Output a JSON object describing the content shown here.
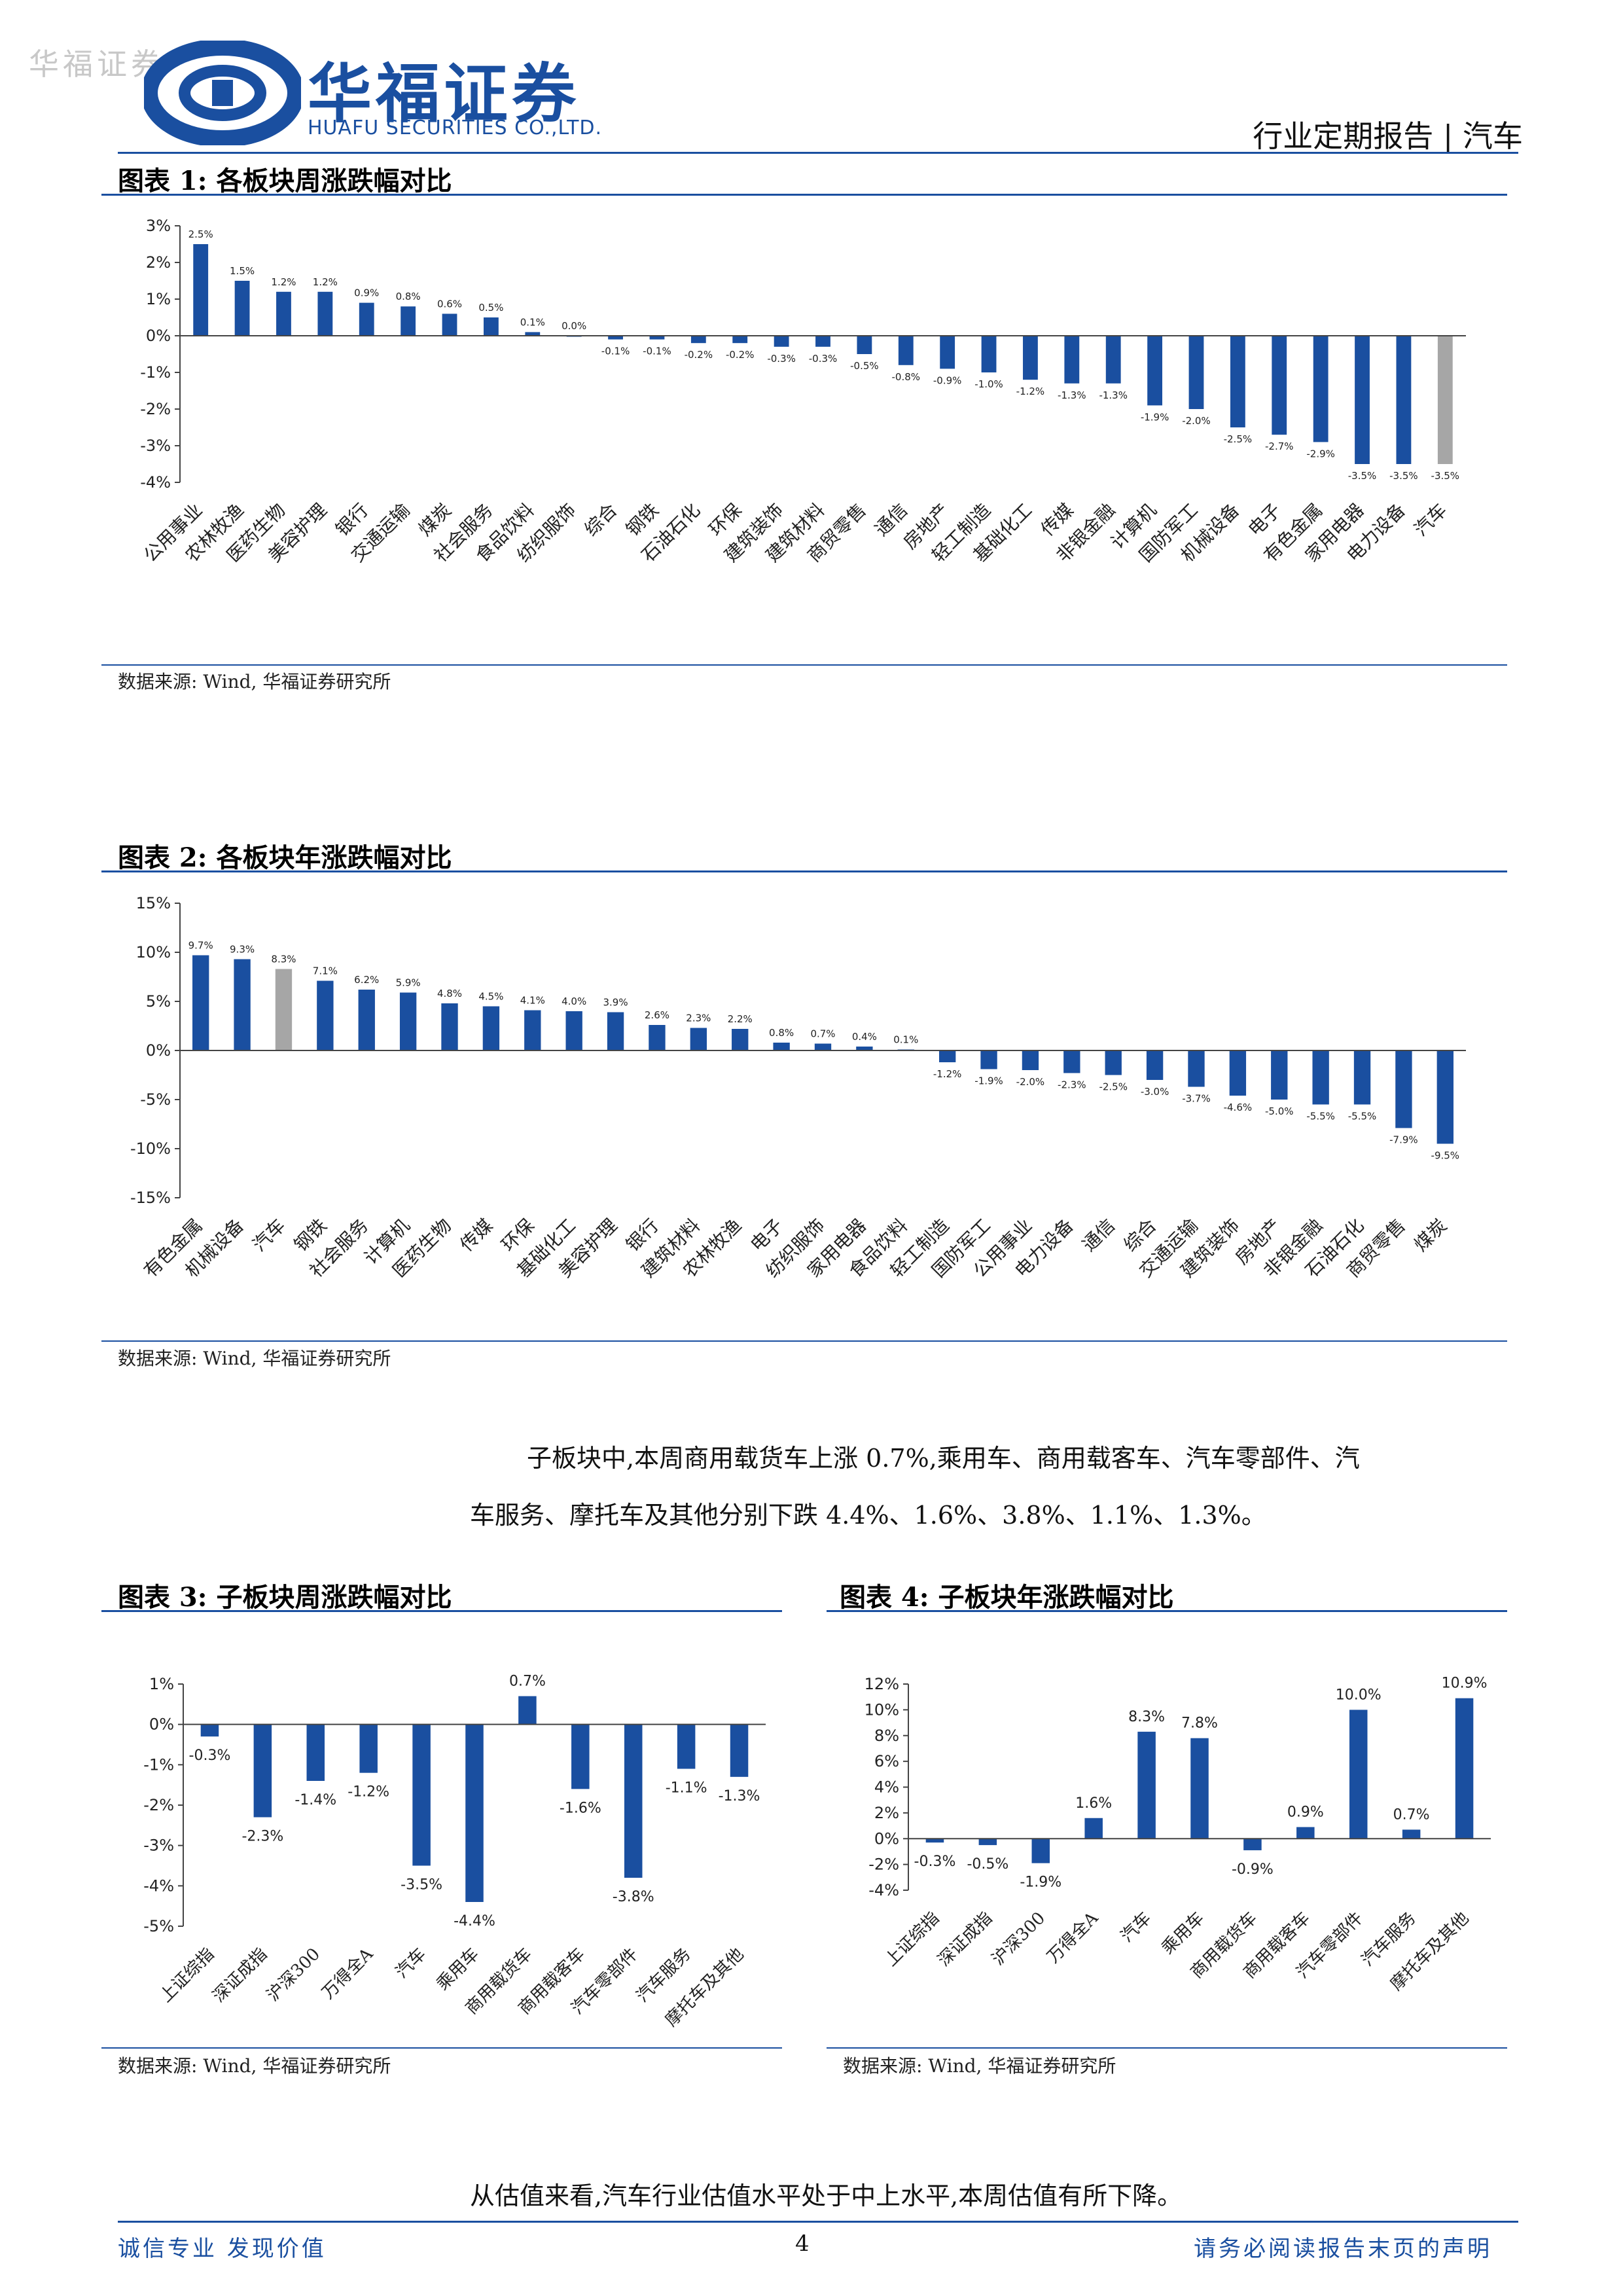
{
  "header": {
    "watermark": "华福证券",
    "logo_cn": "华福证券",
    "logo_en": "HUAFU SECURITIES CO.,LTD.",
    "report_type": "行业定期报告 | 汽车"
  },
  "figures": [
    {
      "title": "图表 1:  各板块周涨跌幅对比",
      "source": "数据来源:  Wind, 华福证券研究所",
      "chart_data": {
        "type": "bar",
        "categories": [
          "公用事业",
          "农林牧渔",
          "医药生物",
          "美容护理",
          "银行",
          "交通运输",
          "煤炭",
          "社会服务",
          "食品饮料",
          "纺织服饰",
          "综合",
          "钢铁",
          "石油石化",
          "环保",
          "建筑装饰",
          "建筑材料",
          "商贸零售",
          "通信",
          "房地产",
          "轻工制造",
          "基础化工",
          "传媒",
          "非银金融",
          "计算机",
          "国防军工",
          "机械设备",
          "电子",
          "有色金属",
          "家用电器",
          "电力设备",
          "汽车"
        ],
        "values": [
          2.5,
          1.5,
          1.2,
          1.2,
          0.9,
          0.8,
          0.6,
          0.5,
          0.1,
          0.0,
          -0.1,
          -0.1,
          -0.2,
          -0.2,
          -0.3,
          -0.3,
          -0.5,
          -0.8,
          -0.9,
          -1.0,
          -1.2,
          -1.3,
          -1.3,
          -1.9,
          -2.0,
          -2.5,
          -2.7,
          -2.9,
          -3.5,
          -3.5,
          -3.5
        ],
        "labels": [
          "2.5%",
          "1.5%",
          "1.2%",
          "1.2%",
          "0.9%",
          "0.8%",
          "0.6%",
          "0.5%",
          "0.1%",
          "0.0%",
          "-0.1%",
          "-0.1%",
          "-0.2%",
          "-0.2%",
          "-0.3%",
          "-0.3%",
          "-0.5%",
          "-0.8%",
          "-0.9%",
          "-1.0%",
          "-1.2%",
          "-1.3%",
          "-1.3%",
          "-1.9%",
          "-2.0%",
          "-2.5%",
          "-2.7%",
          "-2.9%",
          "-3.5%",
          "-3.5%",
          "-3.5%"
        ],
        "highlight": [
          30
        ],
        "ylim": [
          -4,
          3
        ],
        "yticks": [
          3,
          2,
          1,
          0,
          -1,
          -2,
          -3,
          -4
        ],
        "ytick_labels": [
          "3%",
          "2%",
          "1%",
          "0%",
          "-1%",
          "-2%",
          "-3%",
          "-4%"
        ],
        "color": "#1a4fa0",
        "highlight_color": "#a6a6a6"
      }
    },
    {
      "title": "图表 2:  各板块年涨跌幅对比",
      "source": "数据来源:  Wind, 华福证券研究所",
      "chart_data": {
        "type": "bar",
        "categories": [
          "有色金属",
          "机械设备",
          "汽车",
          "钢铁",
          "社会服务",
          "计算机",
          "医药生物",
          "传媒",
          "环保",
          "基础化工",
          "美容护理",
          "银行",
          "建筑材料",
          "农林牧渔",
          "电子",
          "纺织服饰",
          "家用电器",
          "食品饮料",
          "轻工制造",
          "国防军工",
          "公用事业",
          "电力设备",
          "通信",
          "综合",
          "交通运输",
          "建筑装饰",
          "房地产",
          "非银金融",
          "石油石化",
          "商贸零售",
          "煤炭"
        ],
        "values": [
          9.7,
          9.3,
          8.3,
          7.1,
          6.2,
          5.9,
          4.8,
          4.5,
          4.1,
          4.0,
          3.9,
          2.6,
          2.3,
          2.2,
          0.8,
          0.7,
          0.4,
          0.1,
          -1.2,
          -1.9,
          -2.0,
          -2.3,
          -2.5,
          -3.0,
          -3.7,
          -4.6,
          -5.0,
          -5.5,
          -5.5,
          -7.9,
          -9.5
        ],
        "labels": [
          "9.7%",
          "9.3%",
          "8.3%",
          "7.1%",
          "6.2%",
          "5.9%",
          "4.8%",
          "4.5%",
          "4.1%",
          "4.0%",
          "3.9%",
          "2.6%",
          "2.3%",
          "2.2%",
          "0.8%",
          "0.7%",
          "0.4%",
          "0.1%",
          "-1.2%",
          "-1.9%",
          "-2.0%",
          "-2.3%",
          "-2.5%",
          "-3.0%",
          "-3.7%",
          "-4.6%",
          "-5.0%",
          "-5.5%",
          "-5.5%",
          "-7.9%",
          "-9.5%"
        ],
        "highlight": [
          2
        ],
        "ylim": [
          -15,
          15
        ],
        "yticks": [
          15,
          10,
          5,
          0,
          -5,
          -10,
          -15
        ],
        "ytick_labels": [
          "15%",
          "10%",
          "5%",
          "0%",
          "-5%",
          "-10%",
          "-15%"
        ],
        "color": "#1a4fa0",
        "highlight_color": "#a6a6a6"
      }
    },
    {
      "title": "图表 3:  子板块周涨跌幅对比",
      "source": "数据来源:  Wind, 华福证券研究所",
      "chart_data": {
        "type": "bar",
        "categories": [
          "上证综指",
          "深证成指",
          "沪深300",
          "万得全A",
          "汽车",
          "乘用车",
          "商用载货车",
          "商用载客车",
          "汽车零部件",
          "汽车服务",
          "摩托车及其他"
        ],
        "values": [
          -0.3,
          -2.3,
          -1.4,
          -1.2,
          -3.5,
          -4.4,
          0.7,
          -1.6,
          -3.8,
          -1.1,
          -1.3
        ],
        "labels": [
          "-0.3%",
          "-2.3%",
          "-1.4%",
          "-1.2%",
          "-3.5%",
          "-4.4%",
          "0.7%",
          "-1.6%",
          "-3.8%",
          "-1.1%",
          "-1.3%"
        ],
        "highlight": [],
        "ylim": [
          -5,
          1
        ],
        "yticks": [
          1,
          0,
          -1,
          -2,
          -3,
          -4,
          -5
        ],
        "ytick_labels": [
          "1%",
          "0%",
          "-1%",
          "-2%",
          "-3%",
          "-4%",
          "-5%"
        ],
        "color": "#1a4fa0"
      }
    },
    {
      "title": "图表 4:  子板块年涨跌幅对比",
      "source": "数据来源:  Wind, 华福证券研究所",
      "chart_data": {
        "type": "bar",
        "categories": [
          "上证综指",
          "深证成指",
          "沪深300",
          "万得全A",
          "汽车",
          "乘用车",
          "商用载货车",
          "商用载客车",
          "汽车零部件",
          "汽车服务",
          "摩托车及其他"
        ],
        "values": [
          -0.3,
          -0.5,
          -1.9,
          1.6,
          8.3,
          7.8,
          -0.9,
          0.9,
          10.0,
          0.7,
          10.9
        ],
        "labels": [
          "-0.3%",
          "-0.5%",
          "-1.9%",
          "1.6%",
          "8.3%",
          "7.8%",
          "-0.9%",
          "0.9%",
          "10.0%",
          "0.7%",
          "10.9%"
        ],
        "highlight": [],
        "ylim": [
          -4,
          12
        ],
        "yticks": [
          12,
          10,
          8,
          6,
          4,
          2,
          0,
          -2,
          -4
        ],
        "ytick_labels": [
          "12%",
          "10%",
          "8%",
          "6%",
          "4%",
          "2%",
          "0%",
          "-2%",
          "-4%"
        ],
        "color": "#1a4fa0"
      }
    }
  ],
  "body": {
    "para1_line1": "子板块中,本周商用载货车上涨 0.7%,乘用车、商用载客车、汽车零部件、汽",
    "para1_line2": "车服务、摩托车及其他分别下跌 4.4%、1.6%、3.8%、1.1%、1.3%。",
    "para2": "从估值来看,汽车行业估值水平处于中上水平,本周估值有所下降。"
  },
  "footer": {
    "left": "诚信专业  发现价值",
    "page": "4",
    "right": "请务必阅读报告末页的声明"
  }
}
